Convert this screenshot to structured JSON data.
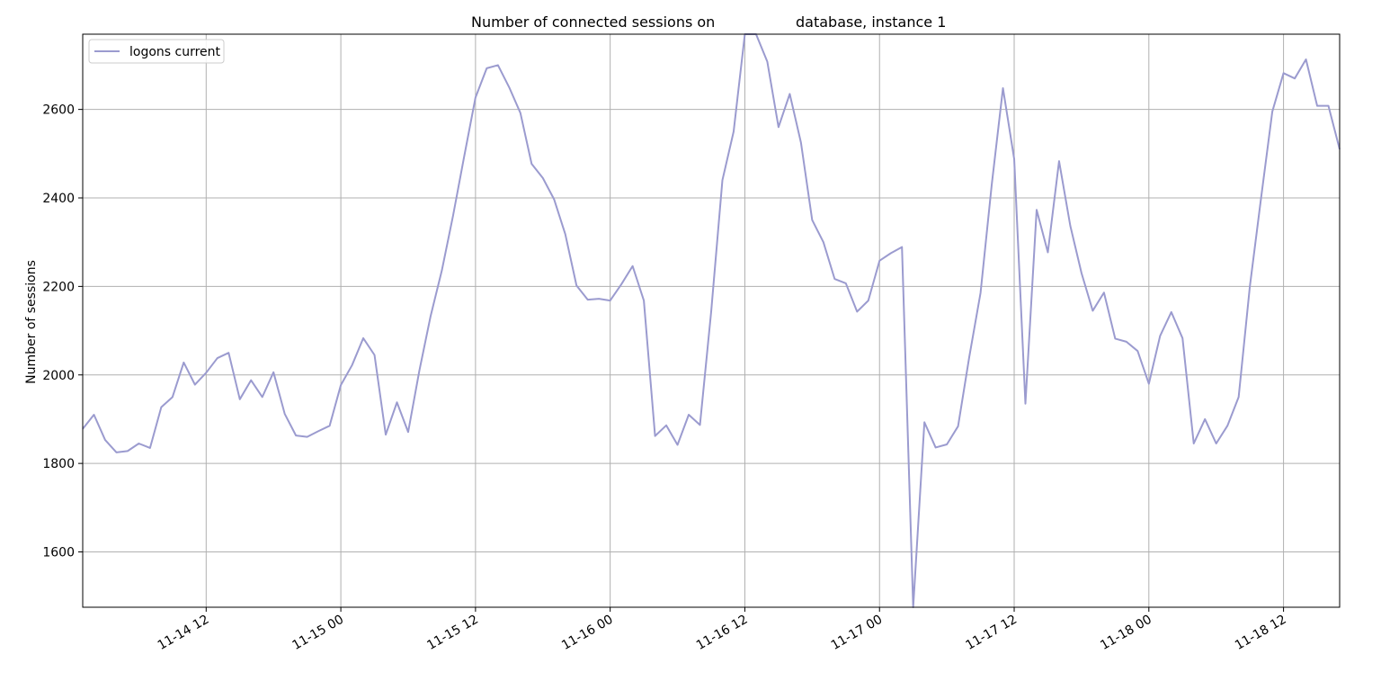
{
  "chart_data": {
    "type": "line",
    "title_left": "Number of connected sessions on",
    "title_right": "database, instance 1",
    "xlabel": "",
    "ylabel": "Number of sessions",
    "ylim": [
      1475,
      2770
    ],
    "yticks": [
      1600,
      1800,
      2000,
      2200,
      2400,
      2600
    ],
    "xlim_hours": [
      0,
      112
    ],
    "x_unit": "hours",
    "x_start": "11-14 01:00",
    "xticks": [
      {
        "label": "11-14 12",
        "hour": 11
      },
      {
        "label": "11-15 00",
        "hour": 23
      },
      {
        "label": "11-15 12",
        "hour": 35
      },
      {
        "label": "11-16 00",
        "hour": 47
      },
      {
        "label": "11-16 12",
        "hour": 59
      },
      {
        "label": "11-17 00",
        "hour": 71
      },
      {
        "label": "11-17 12",
        "hour": 83
      },
      {
        "label": "11-18 00",
        "hour": 95
      },
      {
        "label": "11-18 12",
        "hour": 107
      }
    ],
    "grid": true,
    "legend_position": "top-left",
    "series": [
      {
        "name": "logons current",
        "color": "#9b9bcf",
        "values": [
          1878,
          1910,
          1853,
          1825,
          1828,
          1845,
          1835,
          1927,
          1950,
          2028,
          1978,
          2005,
          2038,
          2050,
          1945,
          1988,
          1950,
          2006,
          1912,
          1863,
          1860,
          1873,
          1885,
          1977,
          2022,
          2083,
          2045,
          1865,
          1938,
          1871,
          2010,
          2133,
          2236,
          2360,
          2495,
          2627,
          2693,
          2700,
          2650,
          2592,
          2477,
          2445,
          2397,
          2318,
          2202,
          2170,
          2172,
          2168,
          2205,
          2246,
          2168,
          1862,
          1886,
          1842,
          1910,
          1887,
          2143,
          2440,
          2550,
          2770,
          2770,
          2708,
          2560,
          2635,
          2525,
          2350,
          2300,
          2217,
          2207,
          2143,
          2168,
          2258,
          2275,
          2289,
          1475,
          1893,
          1836,
          1843,
          1884,
          2041,
          2185,
          2430,
          2648,
          2488,
          1935,
          2373,
          2277,
          2483,
          2337,
          2230,
          2145,
          2186,
          2082,
          2075,
          2054,
          1980,
          2088,
          2142,
          2083,
          1845,
          1900,
          1845,
          1885,
          1950,
          2200,
          2400,
          2595,
          2682,
          2670,
          2713,
          2608,
          2608,
          2510
        ]
      }
    ]
  }
}
